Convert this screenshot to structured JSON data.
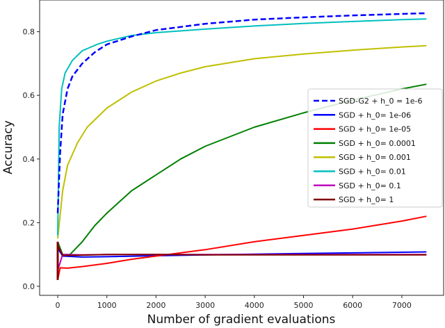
{
  "chart_data": {
    "type": "line",
    "title": "",
    "xlabel": "Number of gradient evaluations",
    "ylabel": "Accuracy",
    "xlim": [
      -1050,
      7900
    ],
    "ylim": [
      -0.03,
      0.9
    ],
    "xticks": [
      0,
      1000,
      2000,
      3000,
      4000,
      5000,
      6000,
      7000
    ],
    "xtick_labels": [
      "0",
      "1000",
      "2000",
      "3000",
      "4000",
      "5000",
      "6000",
      "7000"
    ],
    "yticks": [
      0.0,
      0.2,
      0.4,
      0.6,
      0.8
    ],
    "ytick_labels": [
      "0.0",
      "0.2",
      "0.4",
      "0.6",
      "0.8"
    ],
    "grid": false,
    "legend_position": "center right",
    "series": [
      {
        "name": "SGD-G2 + h_0 = 1e-6",
        "color": "#0000ff",
        "dashed": true,
        "x": [
          0,
          50,
          100,
          200,
          300,
          500,
          750,
          1000,
          1500,
          2000,
          3000,
          4000,
          5000,
          6000,
          7000,
          7500
        ],
        "y": [
          0.23,
          0.42,
          0.54,
          0.62,
          0.66,
          0.7,
          0.735,
          0.76,
          0.785,
          0.805,
          0.825,
          0.838,
          0.845,
          0.851,
          0.856,
          0.858
        ]
      },
      {
        "name": "SGD + h_0= 1e-06",
        "color": "#0000ff",
        "dashed": false,
        "x": [
          0,
          100,
          500,
          1000,
          2000,
          3000,
          4000,
          5000,
          6000,
          7000,
          7500
        ],
        "y": [
          0.12,
          0.095,
          0.092,
          0.093,
          0.096,
          0.099,
          0.101,
          0.103,
          0.105,
          0.107,
          0.108
        ]
      },
      {
        "name": "SGD + h_0= 1e-05",
        "color": "#ff0000",
        "dashed": false,
        "x": [
          0,
          50,
          200,
          500,
          1000,
          1500,
          2000,
          3000,
          4000,
          5000,
          6000,
          7000,
          7500
        ],
        "y": [
          0.02,
          0.058,
          0.057,
          0.062,
          0.072,
          0.085,
          0.095,
          0.115,
          0.14,
          0.16,
          0.18,
          0.205,
          0.22
        ]
      },
      {
        "name": "SGD + h_0= 0.0001",
        "color": "#008000",
        "dashed": false,
        "x": [
          0,
          100,
          250,
          500,
          750,
          1000,
          1500,
          2000,
          2500,
          3000,
          4000,
          5000,
          6000,
          7000,
          7500
        ],
        "y": [
          0.14,
          0.1,
          0.1,
          0.14,
          0.19,
          0.23,
          0.3,
          0.35,
          0.4,
          0.44,
          0.5,
          0.545,
          0.585,
          0.62,
          0.635
        ]
      },
      {
        "name": "SGD + h_0= 0.001",
        "color": "#bfbf00",
        "dashed": false,
        "x": [
          0,
          100,
          200,
          400,
          600,
          1000,
          1500,
          2000,
          2500,
          3000,
          4000,
          5000,
          6000,
          7000,
          7500
        ],
        "y": [
          0.15,
          0.3,
          0.38,
          0.45,
          0.5,
          0.56,
          0.61,
          0.645,
          0.67,
          0.69,
          0.715,
          0.73,
          0.742,
          0.752,
          0.756
        ]
      },
      {
        "name": "SGD + h_0= 0.01",
        "color": "#00bfbf",
        "dashed": false,
        "x": [
          0,
          30,
          80,
          150,
          300,
          500,
          800,
          1000,
          1500,
          2000,
          3000,
          4000,
          5000,
          6000,
          7000,
          7500
        ],
        "y": [
          0.16,
          0.5,
          0.62,
          0.67,
          0.71,
          0.74,
          0.76,
          0.77,
          0.788,
          0.797,
          0.808,
          0.818,
          0.826,
          0.832,
          0.838,
          0.84
        ]
      },
      {
        "name": "SGD + h_0= 0.1",
        "color": "#bf00bf",
        "dashed": false,
        "x": [
          0,
          100,
          500,
          1000,
          2000,
          3000,
          4000,
          5000,
          6000,
          7000,
          7500
        ],
        "y": [
          0.05,
          0.1,
          0.099,
          0.1,
          0.1,
          0.1,
          0.1,
          0.1,
          0.1,
          0.1,
          0.1
        ]
      },
      {
        "name": "SGD + h_0= 1",
        "color": "#800000",
        "dashed": false,
        "x": [
          0,
          100,
          500,
          1000,
          2000,
          3000,
          4000,
          5000,
          6000,
          7000,
          7500
        ],
        "y": [
          0.13,
          0.097,
          0.098,
          0.1,
          0.1,
          0.099,
          0.099,
          0.099,
          0.099,
          0.099,
          0.099
        ]
      }
    ]
  }
}
